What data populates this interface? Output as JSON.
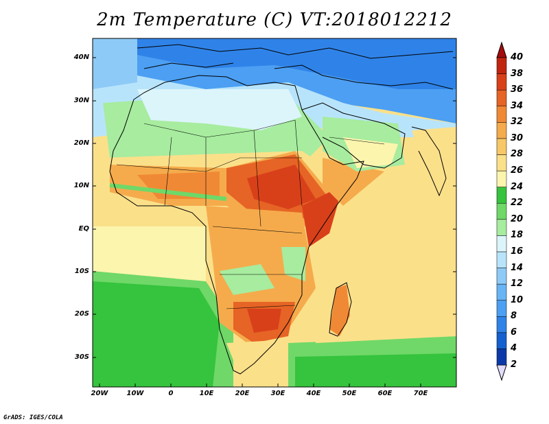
{
  "title": "2m Temperature (C) VT:2018012212",
  "credit": "GrADS: IGES/COLA",
  "map": {
    "lat_labels": [
      "40N",
      "30N",
      "20N",
      "10N",
      "EQ",
      "10S",
      "20S",
      "30S"
    ],
    "lon_labels": [
      "20W",
      "10W",
      "0",
      "10E",
      "20E",
      "30E",
      "40E",
      "50E",
      "60E",
      "70E"
    ]
  },
  "colorbar": {
    "levels": [
      "2",
      "4",
      "6",
      "8",
      "10",
      "12",
      "14",
      "16",
      "18",
      "20",
      "22",
      "24",
      "26",
      "28",
      "30",
      "32",
      "34",
      "36",
      "38",
      "40"
    ],
    "colors": [
      "#0a1d6e",
      "#0b3aa8",
      "#1560cf",
      "#2f83e8",
      "#4c9ff2",
      "#68b4f5",
      "#8ecaf7",
      "#b8e4fb",
      "#dcf5fb",
      "#a7ec9f",
      "#6fd868",
      "#36c33d",
      "#fbf5ae",
      "#fbe08a",
      "#f8c768",
      "#f5ab4c",
      "#f08935",
      "#e66425",
      "#d8401a",
      "#c02510",
      "#a40d0d"
    ],
    "under_color": "#e3dcfa"
  }
}
